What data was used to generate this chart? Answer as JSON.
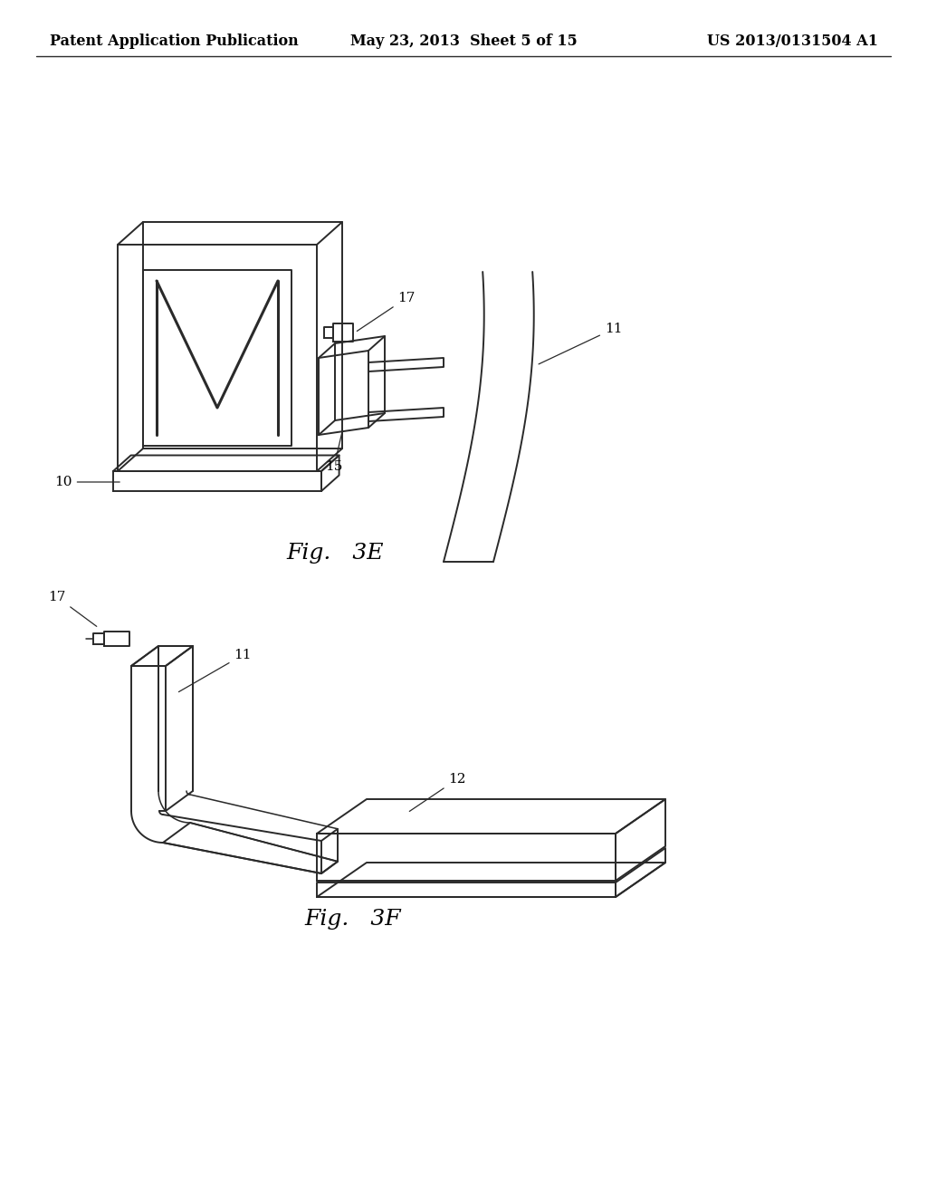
{
  "background_color": "#ffffff",
  "line_color": "#2a2a2a",
  "lw": 1.4,
  "header": {
    "left": "Patent Application Publication",
    "center": "May 23, 2013  Sheet 5 of 15",
    "right": "US 2013/0131504 A1",
    "fontsize": 11.5
  },
  "fig3e_caption": "Fig.   3E",
  "fig3f_caption": "Fig.   3F"
}
